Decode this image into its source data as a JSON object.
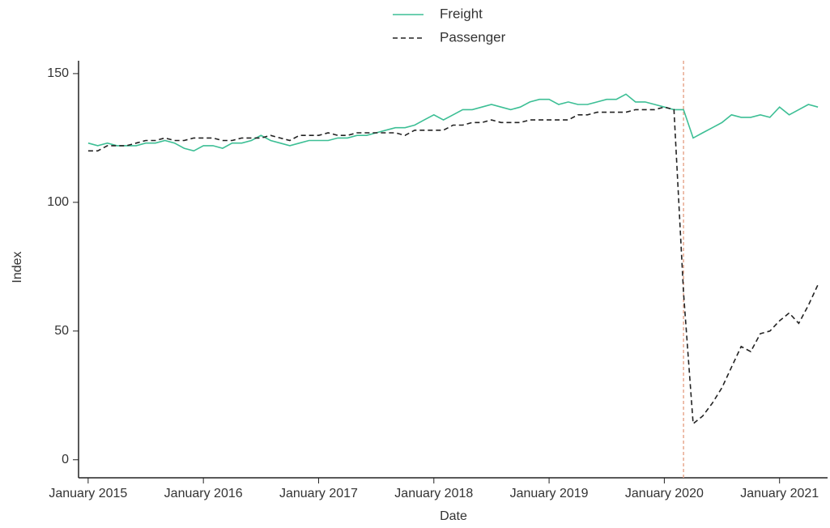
{
  "chart_data": {
    "type": "line",
    "x_label": "Date",
    "y_label": "Index",
    "x": [
      "2015-01",
      "2015-02",
      "2015-03",
      "2015-04",
      "2015-05",
      "2015-06",
      "2015-07",
      "2015-08",
      "2015-09",
      "2015-10",
      "2015-11",
      "2015-12",
      "2016-01",
      "2016-02",
      "2016-03",
      "2016-04",
      "2016-05",
      "2016-06",
      "2016-07",
      "2016-08",
      "2016-09",
      "2016-10",
      "2016-11",
      "2016-12",
      "2017-01",
      "2017-02",
      "2017-03",
      "2017-04",
      "2017-05",
      "2017-06",
      "2017-07",
      "2017-08",
      "2017-09",
      "2017-10",
      "2017-11",
      "2017-12",
      "2018-01",
      "2018-02",
      "2018-03",
      "2018-04",
      "2018-05",
      "2018-06",
      "2018-07",
      "2018-08",
      "2018-09",
      "2018-10",
      "2018-11",
      "2018-12",
      "2019-01",
      "2019-02",
      "2019-03",
      "2019-04",
      "2019-05",
      "2019-06",
      "2019-07",
      "2019-08",
      "2019-09",
      "2019-10",
      "2019-11",
      "2019-12",
      "2020-01",
      "2020-02",
      "2020-03",
      "2020-04",
      "2020-05",
      "2020-06",
      "2020-07",
      "2020-08",
      "2020-09",
      "2020-10",
      "2020-11",
      "2020-12",
      "2021-01",
      "2021-02",
      "2021-03",
      "2021-04",
      "2021-05"
    ],
    "series": [
      {
        "name": "Freight",
        "color": "#3dbf95",
        "style": "solid",
        "values": [
          123,
          122,
          123,
          122,
          122,
          122,
          123,
          123,
          124,
          123,
          121,
          120,
          122,
          122,
          121,
          123,
          123,
          124,
          126,
          124,
          123,
          122,
          123,
          124,
          124,
          124,
          125,
          125,
          126,
          126,
          127,
          128,
          129,
          129,
          130,
          132,
          134,
          132,
          134,
          136,
          136,
          137,
          138,
          137,
          136,
          137,
          139,
          140,
          140,
          138,
          139,
          138,
          138,
          139,
          140,
          140,
          142,
          139,
          139,
          138,
          137,
          136,
          136,
          125,
          127,
          129,
          131,
          134,
          133,
          133,
          134,
          133,
          137,
          134,
          136,
          138,
          137
        ]
      },
      {
        "name": "Passenger",
        "color": "#222222",
        "style": "dashed",
        "values": [
          120,
          120,
          122,
          122,
          122,
          123,
          124,
          124,
          125,
          124,
          124,
          125,
          125,
          125,
          124,
          124,
          125,
          125,
          125,
          126,
          125,
          124,
          126,
          126,
          126,
          127,
          126,
          126,
          127,
          127,
          127,
          127,
          127,
          126,
          128,
          128,
          128,
          128,
          130,
          130,
          131,
          131,
          132,
          131,
          131,
          131,
          132,
          132,
          132,
          132,
          132,
          134,
          134,
          135,
          135,
          135,
          135,
          136,
          136,
          136,
          137,
          136,
          65,
          14,
          17,
          22,
          28,
          36,
          44,
          42,
          49,
          50,
          54,
          57,
          53,
          60,
          68
        ]
      }
    ],
    "xlim": [
      "2014-12",
      "2021-06"
    ],
    "xticks": [
      {
        "value": "2015-01",
        "label": "January 2015"
      },
      {
        "value": "2016-01",
        "label": "January 2016"
      },
      {
        "value": "2017-01",
        "label": "January 2017"
      },
      {
        "value": "2018-01",
        "label": "January 2018"
      },
      {
        "value": "2019-01",
        "label": "January 2019"
      },
      {
        "value": "2020-01",
        "label": "January 2020"
      },
      {
        "value": "2021-01",
        "label": "January 2021"
      }
    ],
    "ylim": [
      -7,
      155
    ],
    "yticks": [
      0,
      50,
      100,
      150
    ],
    "vline": {
      "x": "2020-03",
      "color": "#e8a890"
    },
    "legend": "top"
  }
}
